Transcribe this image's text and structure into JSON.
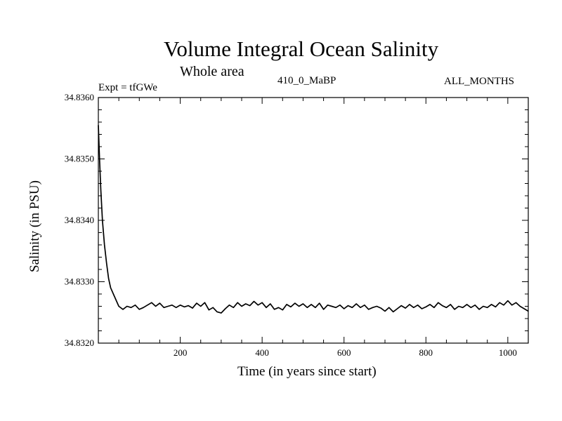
{
  "chart_data": {
    "type": "line",
    "title": "Volume Integral Ocean Salinity",
    "subtitle": "Whole area",
    "left_label": "Expt = tfGWe",
    "center_label": "410_0_MaBP",
    "right_label": "ALL_MONTHS",
    "xlabel": "Time (in years since start)",
    "ylabel": "Salinity (in PSU)",
    "xlim": [
      0,
      1050
    ],
    "ylim": [
      34.832,
      34.836
    ],
    "x_ticks": [
      200,
      400,
      600,
      800,
      1000
    ],
    "y_ticks": [
      "34.8320",
      "34.8330",
      "34.8340",
      "34.8350",
      "34.8360"
    ],
    "series": [
      {
        "name": "salinity",
        "x": [
          0,
          3,
          6,
          10,
          15,
          20,
          25,
          30,
          40,
          50,
          60,
          70,
          80,
          90,
          100,
          110,
          120,
          130,
          140,
          150,
          160,
          170,
          180,
          190,
          200,
          210,
          220,
          230,
          240,
          250,
          260,
          270,
          280,
          290,
          300,
          310,
          320,
          330,
          340,
          350,
          360,
          370,
          380,
          390,
          400,
          410,
          420,
          430,
          440,
          450,
          460,
          470,
          480,
          490,
          500,
          510,
          520,
          530,
          540,
          550,
          560,
          570,
          580,
          590,
          600,
          610,
          620,
          630,
          640,
          650,
          660,
          670,
          680,
          690,
          700,
          710,
          720,
          730,
          740,
          750,
          760,
          770,
          780,
          790,
          800,
          810,
          820,
          830,
          840,
          850,
          860,
          870,
          880,
          890,
          900,
          910,
          920,
          930,
          940,
          950,
          960,
          970,
          980,
          990,
          1000,
          1010,
          1020,
          1030,
          1040,
          1050
        ],
        "values": [
          34.83555,
          34.835,
          34.8345,
          34.834,
          34.8336,
          34.8333,
          34.83305,
          34.8329,
          34.83275,
          34.8326,
          34.83255,
          34.8326,
          34.83258,
          34.83262,
          34.83255,
          34.83258,
          34.83262,
          34.83266,
          34.8326,
          34.83265,
          34.83258,
          34.8326,
          34.83262,
          34.83258,
          34.83262,
          34.83259,
          34.83261,
          34.83257,
          34.83265,
          34.8326,
          34.83266,
          34.83254,
          34.83258,
          34.83251,
          34.83249,
          34.83256,
          34.83262,
          34.83258,
          34.83266,
          34.8326,
          34.83264,
          34.83261,
          34.83268,
          34.83262,
          34.83266,
          34.83258,
          34.83264,
          34.83255,
          34.83258,
          34.83254,
          34.83263,
          34.83259,
          34.83265,
          34.8326,
          34.83264,
          34.83258,
          34.83263,
          34.83258,
          34.83265,
          34.83255,
          34.83262,
          34.8326,
          34.83258,
          34.83262,
          34.83256,
          34.83261,
          34.83258,
          34.83264,
          34.83258,
          34.83262,
          34.83255,
          34.83258,
          34.8326,
          34.83257,
          34.83252,
          34.83258,
          34.83251,
          34.83256,
          34.83261,
          34.83257,
          34.83263,
          34.83258,
          34.83262,
          34.83256,
          34.83259,
          34.83263,
          34.83258,
          34.83266,
          34.83261,
          34.83258,
          34.83263,
          34.83255,
          34.8326,
          34.83258,
          34.83263,
          34.83258,
          34.83262,
          34.83255,
          34.8326,
          34.83258,
          34.83263,
          34.83259,
          34.83266,
          34.83262,
          34.83269,
          34.83262,
          34.83266,
          34.8326,
          34.83256,
          34.83252
        ]
      }
    ],
    "grid": false,
    "line_color": "#000000"
  }
}
